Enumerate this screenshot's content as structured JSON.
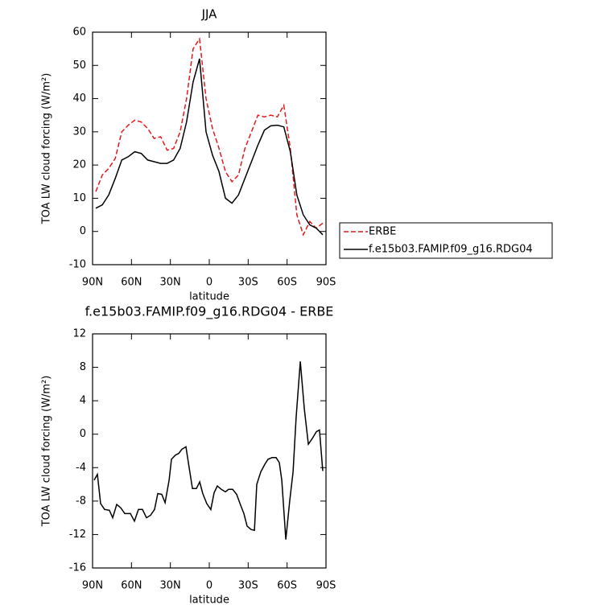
{
  "chart_data": [
    {
      "type": "line",
      "title": "JJA",
      "ylabel": "TOA LW cloud forcing (W/m²)",
      "xlabel": "latitude",
      "x": [
        87.5,
        82.5,
        77.5,
        72.5,
        67.5,
        62.5,
        57.5,
        52.5,
        47.5,
        42.5,
        37.5,
        32.5,
        27.5,
        22.5,
        17.5,
        12.5,
        7.5,
        2.5,
        -2.5,
        -7.5,
        -12.5,
        -17.5,
        -22.5,
        -27.5,
        -32.5,
        -37.5,
        -42.5,
        -47.5,
        -52.5,
        -57.5,
        -62.5,
        -67.5,
        -72.5,
        -77.5,
        -82.5,
        -87.5
      ],
      "series": [
        {
          "name": "ERBE",
          "color": "#e31a1c",
          "line_style": "dashed",
          "values": [
            12,
            17,
            19,
            22,
            30,
            32,
            33.5,
            33,
            31,
            28,
            28.5,
            24.5,
            25,
            30,
            40,
            55,
            58,
            40,
            31,
            25,
            18,
            15,
            17,
            25,
            30,
            35,
            34.5,
            35,
            34.5,
            38,
            25,
            5,
            -1,
            3,
            1,
            2.5
          ]
        },
        {
          "name": "f.e15b03.FAMIP.f09_g16.RDG04",
          "color": "#000000",
          "line_style": "solid",
          "values": [
            7,
            8,
            11,
            16,
            21.5,
            22.5,
            24,
            23.5,
            21.5,
            21,
            20.5,
            20.5,
            21.5,
            25,
            33,
            45,
            52,
            30,
            23,
            18,
            10,
            8.5,
            11,
            16,
            21,
            26,
            30.5,
            31.8,
            32,
            31.5,
            24,
            11,
            5,
            2,
            1,
            -1
          ]
        }
      ],
      "xlim": [
        90,
        -90
      ],
      "xticks": [
        {
          "value": 90,
          "label": "90N"
        },
        {
          "value": 60,
          "label": "60N"
        },
        {
          "value": 30,
          "label": "30N"
        },
        0,
        {
          "value": -30,
          "label": "30S"
        },
        {
          "value": -60,
          "label": "60S"
        },
        {
          "value": -90,
          "label": "90S"
        }
      ],
      "ylim": [
        -10,
        60
      ],
      "yticks": [
        -10,
        0,
        10,
        20,
        30,
        40,
        50,
        60
      ],
      "legend": "right"
    },
    {
      "type": "line",
      "title": "f.e15b03.FAMIP.f09_g16.RDG04 - ERBE",
      "ylabel": "TOA LW cloud forcing (W/m²)",
      "xlabel": "latitude",
      "x": [
        88.8,
        86.3,
        83.8,
        80.7,
        77,
        74.5,
        71.4,
        68.3,
        65.2,
        60.8,
        57.7,
        54.6,
        51.5,
        48.4,
        45.3,
        42.2,
        39.7,
        36.6,
        34.1,
        31,
        29.2,
        26.1,
        23.6,
        21.1,
        18,
        15.5,
        13,
        9.9,
        7.4,
        5,
        1.9,
        -1.2,
        -3.7,
        -6.2,
        -9.3,
        -12.4,
        -14.9,
        -18,
        -21.1,
        -24.2,
        -26.7,
        -29.2,
        -32.3,
        -34.8,
        -36.6,
        -39.7,
        -42.8,
        -45.3,
        -48.4,
        -51.5,
        -54,
        -55.9,
        -59,
        -62,
        -64.6,
        -67,
        -70.2,
        -73.3,
        -76.4,
        -79.5,
        -82.6,
        -85,
        -87.5
      ],
      "series": [
        {
          "name": "f.e15b03.FAMIP.f09_g16.RDG04 - ERBE",
          "color": "#000000",
          "line_style": "solid",
          "values": [
            -5.5,
            -4.8,
            -8.3,
            -9,
            -9.1,
            -10,
            -8.4,
            -8.8,
            -9.5,
            -9.5,
            -10.4,
            -9,
            -9,
            -10,
            -9.7,
            -9,
            -7.1,
            -7.2,
            -8.2,
            -5.5,
            -3,
            -2.5,
            -2.3,
            -1.8,
            -1.5,
            -4,
            -6.5,
            -6.5,
            -5.7,
            -7.1,
            -8.3,
            -9,
            -7,
            -6.2,
            -6.6,
            -6.9,
            -6.6,
            -6.6,
            -7.2,
            -8.5,
            -9.5,
            -11,
            -11.4,
            -11.5,
            -6,
            -4.5,
            -3.6,
            -3,
            -2.8,
            -2.8,
            -3.4,
            -5.5,
            -12.6,
            -8,
            -4.5,
            2,
            8.7,
            3,
            -1.2,
            -0.5,
            0.3,
            0.5,
            -4.4
          ]
        }
      ],
      "xlim": [
        90,
        -90
      ],
      "xticks": [
        {
          "value": 90,
          "label": "90N"
        },
        {
          "value": 60,
          "label": "60N"
        },
        {
          "value": 30,
          "label": "30N"
        },
        0,
        {
          "value": -30,
          "label": "30S"
        },
        {
          "value": -60,
          "label": "60S"
        },
        {
          "value": -90,
          "label": "90S"
        }
      ],
      "ylim": [
        -16,
        12
      ],
      "yticks": [
        -16,
        -12,
        -8,
        -4,
        0,
        4,
        8,
        12
      ]
    }
  ]
}
